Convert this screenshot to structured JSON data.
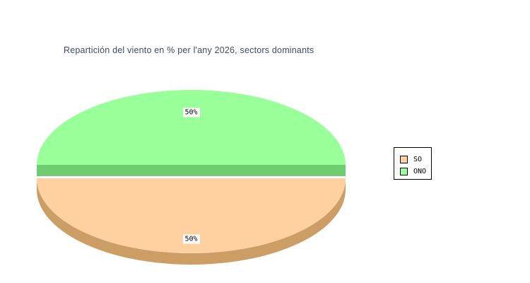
{
  "chart_data": {
    "type": "pie",
    "style": "3d-exploded",
    "title": "Repartición del viento en % per l'any 2026, sectors dominants",
    "title_color": "#414868",
    "background": "#FFFFFF",
    "label_color": "#000000",
    "label_background": "#FFFFFF",
    "legend_position": "right",
    "slices": [
      {
        "label": "SO",
        "value": 50,
        "display": "50%",
        "face_color": "#FFD0A0",
        "side_color": "#CC9E66"
      },
      {
        "label": "ONO",
        "value": 50,
        "display": "50%",
        "face_color": "#99FF99",
        "side_color": "#70CC70"
      }
    ]
  }
}
